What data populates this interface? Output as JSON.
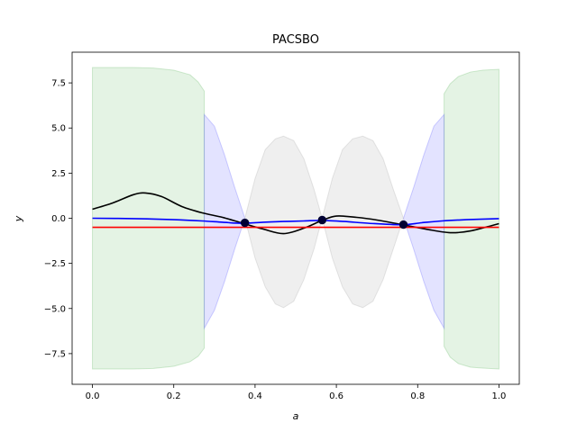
{
  "chart_data": {
    "type": "line",
    "title": "PACSBO",
    "xlabel": "a",
    "ylabel": "y",
    "xlim": [
      -0.05,
      1.05
    ],
    "ylim": [
      -9.2,
      9.2
    ],
    "x_ticks": [
      0.0,
      0.2,
      0.4,
      0.6,
      0.8,
      1.0
    ],
    "x_tick_labels": [
      "0.0",
      "0.2",
      "0.4",
      "0.6",
      "0.8",
      "1.0"
    ],
    "y_ticks": [
      7.5,
      5.0,
      2.5,
      0.0,
      -2.5,
      -5.0,
      -7.5
    ],
    "y_tick_labels": [
      "7.5",
      "5.0",
      "2.5",
      "0.0",
      "−2.5",
      "−5.0",
      "−7.5"
    ],
    "grid": false,
    "colors": {
      "true_function": "#000000",
      "mean": "#0000ff",
      "threshold": "#ff0000",
      "green_band": "#2ca02c",
      "blue_band": "#4040ff",
      "gray_band": "#b0b0b0",
      "observations": "#000033"
    },
    "series": [
      {
        "kind": "line",
        "color": "#000000",
        "x": [
          0.0,
          0.05,
          0.1,
          0.13,
          0.17,
          0.22,
          0.27,
          0.32,
          0.37,
          0.42,
          0.47,
          0.52,
          0.565,
          0.6,
          0.65,
          0.7,
          0.76,
          0.82,
          0.88,
          0.93,
          1.0
        ],
        "y": [
          0.5,
          0.85,
          1.3,
          1.4,
          1.2,
          0.65,
          0.3,
          0.05,
          -0.28,
          -0.6,
          -0.85,
          -0.55,
          -0.12,
          0.12,
          0.05,
          -0.1,
          -0.35,
          -0.6,
          -0.8,
          -0.7,
          -0.3
        ]
      },
      {
        "kind": "line",
        "color": "#0000ff",
        "x": [
          0.0,
          0.1,
          0.2,
          0.27,
          0.32,
          0.37,
          0.42,
          0.47,
          0.52,
          0.565,
          0.62,
          0.68,
          0.76,
          0.81,
          0.86,
          0.92,
          1.0
        ],
        "y": [
          0.0,
          -0.02,
          -0.08,
          -0.15,
          -0.22,
          -0.28,
          -0.22,
          -0.18,
          -0.15,
          -0.12,
          -0.18,
          -0.28,
          -0.36,
          -0.25,
          -0.15,
          -0.08,
          -0.02
        ]
      },
      {
        "kind": "line",
        "color": "#ff0000",
        "x": [
          0.0,
          1.0
        ],
        "y": [
          -0.5,
          -0.5
        ]
      }
    ],
    "observations": {
      "x": [
        0.375,
        0.565,
        0.765
      ],
      "y": [
        -0.25,
        -0.1,
        -0.35
      ]
    },
    "green_band": {
      "x": [
        0.0,
        0.05,
        0.1,
        0.15,
        0.2,
        0.24,
        0.26,
        0.275
      ],
      "upper": [
        8.35,
        8.35,
        8.35,
        8.32,
        8.2,
        7.95,
        7.55,
        7.05
      ],
      "lower": [
        -8.35,
        -8.35,
        -8.35,
        -8.32,
        -8.2,
        -7.95,
        -7.65,
        -7.2
      ]
    },
    "green_band_right": {
      "x": [
        0.865,
        0.88,
        0.9,
        0.93,
        0.96,
        1.0
      ],
      "upper": [
        6.9,
        7.45,
        7.85,
        8.1,
        8.2,
        8.25
      ],
      "lower": [
        -7.1,
        -7.7,
        -8.05,
        -8.25,
        -8.3,
        -8.35
      ]
    },
    "blue_band": [
      {
        "x": [
          0.275,
          0.3,
          0.325,
          0.35,
          0.375
        ],
        "upper": [
          5.75,
          5.1,
          3.5,
          1.7,
          0.0
        ],
        "lower": [
          -6.1,
          -5.1,
          -3.5,
          -1.7,
          0.0
        ]
      },
      {
        "x": [
          0.765,
          0.79,
          0.815,
          0.84,
          0.865
        ],
        "upper": [
          0.0,
          1.7,
          3.5,
          5.1,
          5.75
        ],
        "lower": [
          0.0,
          -1.7,
          -3.5,
          -5.1,
          -6.1
        ]
      }
    ],
    "gray_band": [
      {
        "x": [
          0.375,
          0.4,
          0.425,
          0.45,
          0.47,
          0.495,
          0.52,
          0.545,
          0.565
        ],
        "upper": [
          0.0,
          2.2,
          3.8,
          4.4,
          4.55,
          4.3,
          3.3,
          1.6,
          0.0
        ],
        "lower": [
          0.0,
          -2.2,
          -3.8,
          -4.75,
          -4.95,
          -4.6,
          -3.4,
          -1.7,
          0.0
        ]
      },
      {
        "x": [
          0.565,
          0.59,
          0.615,
          0.64,
          0.665,
          0.69,
          0.715,
          0.74,
          0.765
        ],
        "upper": [
          0.0,
          2.2,
          3.8,
          4.4,
          4.55,
          4.3,
          3.3,
          1.6,
          0.0
        ],
        "lower": [
          0.0,
          -2.2,
          -3.8,
          -4.75,
          -4.95,
          -4.6,
          -3.4,
          -1.7,
          0.0
        ]
      }
    ]
  }
}
